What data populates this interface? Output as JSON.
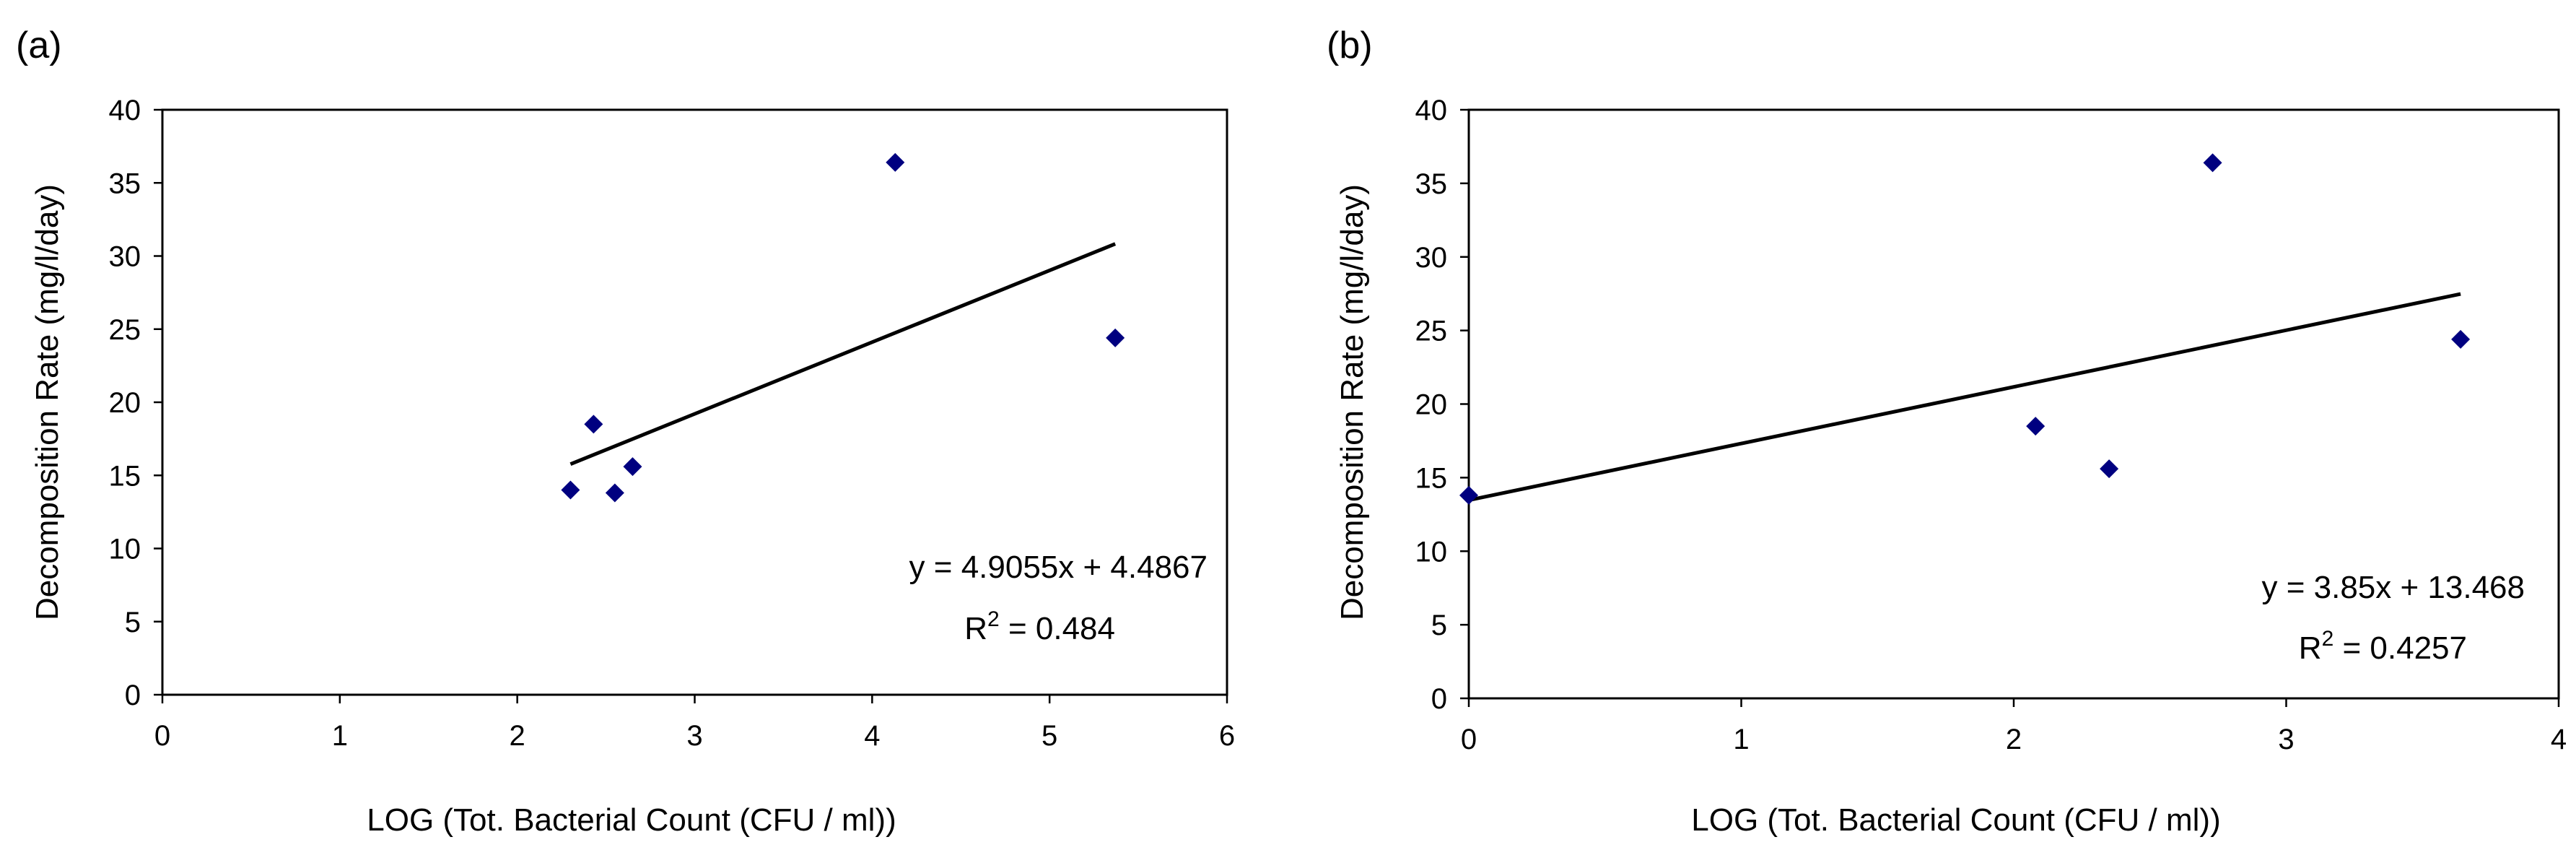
{
  "colors": {
    "marker": "#000080",
    "line": "#000000",
    "frame": "#000000"
  },
  "chart_data": [
    {
      "panel": "(a)",
      "type": "scatter",
      "xlabel": "LOG (Tot. Bacterial Count (CFU / ml))",
      "ylabel": "Decomposition Rate (mg/l/day)",
      "xlim": [
        0,
        6
      ],
      "ylim": [
        0,
        40
      ],
      "xticks": [
        0,
        1,
        2,
        3,
        4,
        5,
        6
      ],
      "yticks": [
        0,
        5,
        10,
        15,
        20,
        25,
        30,
        35,
        40
      ],
      "points": [
        {
          "x": 2.3,
          "y": 14.0
        },
        {
          "x": 2.43,
          "y": 18.5
        },
        {
          "x": 2.55,
          "y": 13.8
        },
        {
          "x": 2.65,
          "y": 15.6
        },
        {
          "x": 4.13,
          "y": 36.4
        },
        {
          "x": 5.37,
          "y": 24.4
        }
      ],
      "trendline": {
        "slope": 4.9055,
        "intercept": 4.4867,
        "x_range": [
          2.3,
          5.37
        ]
      },
      "equation": "y = 4.9055x + 4.4867",
      "r2_prefix": "R",
      "r2_sup": "2",
      "r2_value": " = 0.484"
    },
    {
      "panel": "(b)",
      "type": "scatter",
      "xlabel": "LOG (Tot. Bacterial Count (CFU / ml))",
      "ylabel": "Decomposition Rate (mg/l/day)",
      "xlim": [
        0,
        4
      ],
      "ylim": [
        0,
        40
      ],
      "xticks": [
        0,
        1,
        2,
        3,
        4
      ],
      "yticks": [
        0,
        5,
        10,
        15,
        20,
        25,
        30,
        35,
        40
      ],
      "points": [
        {
          "x": 0.0,
          "y": 13.8
        },
        {
          "x": 2.08,
          "y": 18.5
        },
        {
          "x": 2.35,
          "y": 15.6
        },
        {
          "x": 2.73,
          "y": 36.4
        },
        {
          "x": 3.64,
          "y": 24.4
        }
      ],
      "trendline": {
        "slope": 3.85,
        "intercept": 13.468,
        "x_range": [
          0.0,
          3.64
        ]
      },
      "equation": "y = 3.85x + 13.468",
      "r2_prefix": "R",
      "r2_sup": "2",
      "r2_value": " = 0.4257"
    }
  ]
}
